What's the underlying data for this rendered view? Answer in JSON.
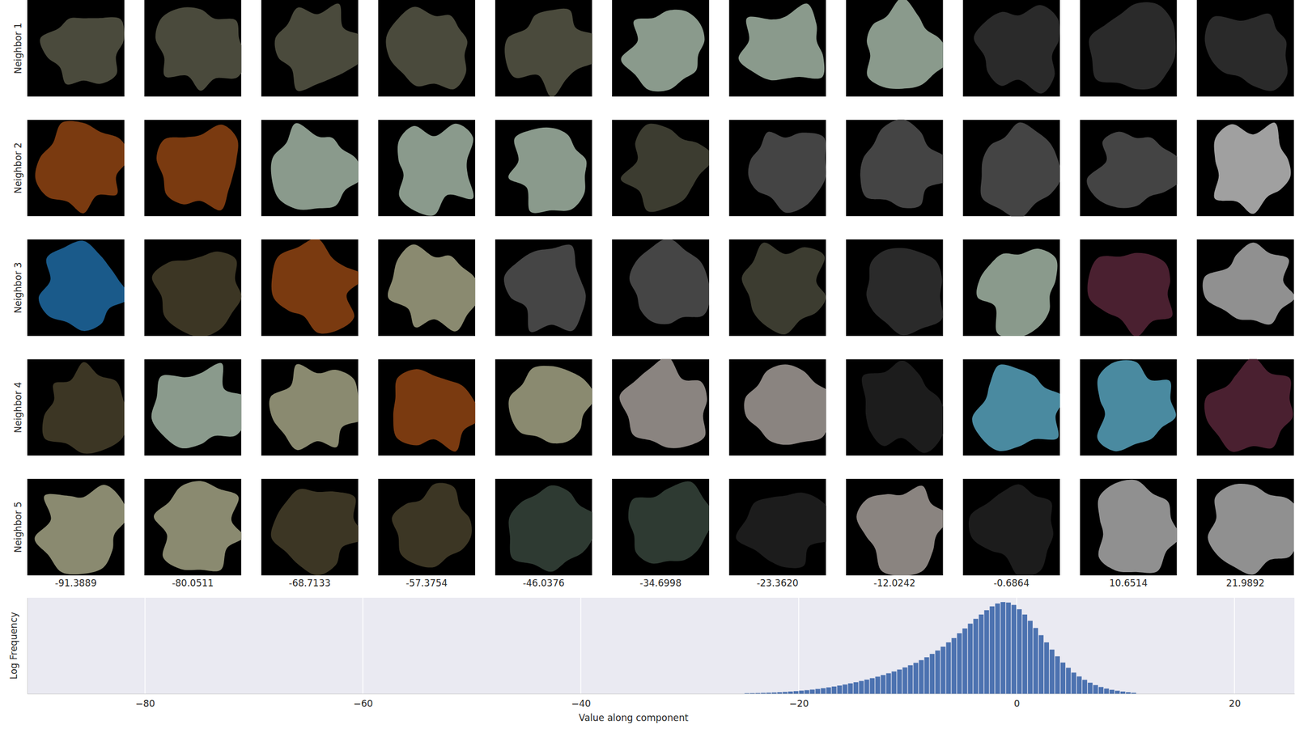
{
  "chart_data": {
    "type": "histogram",
    "row_labels": [
      "Neighbor 1",
      "Neighbor 2",
      "Neighbor 3",
      "Neighbor 4",
      "Neighbor 5"
    ],
    "column_values": [
      -91.3889,
      -80.0511,
      -68.7133,
      -57.3754,
      -46.0376,
      -34.6998,
      {
        "value": -23.362,
        "label": "-23.3620"
      },
      -12.0242,
      -0.6864,
      10.6514,
      21.9892
    ],
    "x_label": "Value along component",
    "y_label": "Log Frequency",
    "color": "#4c72b0",
    "grid": true,
    "tick_labels": "x",
    "xlim": [
      -90.8,
      25.5
    ],
    "xticks": [
      {
        "value": -80,
        "label": "−80"
      },
      {
        "value": -60,
        "label": "−60"
      },
      {
        "value": -40,
        "label": "−40"
      },
      {
        "value": -20,
        "label": "−20"
      },
      0,
      20
    ],
    "ylim": [
      0,
      10
    ],
    "bins": [
      -25,
      -24.5,
      -24,
      -23.5,
      -23,
      -22.5,
      -22,
      -21.5,
      -21,
      -20.5,
      -20,
      -19.5,
      -19,
      -18.5,
      -18,
      -17.5,
      -17,
      -16.5,
      -16,
      -15.5,
      -15,
      -14.5,
      -14,
      -13.5,
      -13,
      -12.5,
      -12,
      -11.5,
      -11,
      -10.5,
      -10,
      -9.5,
      -9,
      -8.5,
      -8,
      -7.5,
      -7,
      -6.5,
      -6,
      -5.5,
      -5,
      -4.5,
      -4,
      -3.5,
      -3,
      -2.5,
      -2,
      -1.5,
      -1,
      -0.5,
      0,
      0.5,
      1,
      1.5,
      2,
      2.5,
      3,
      3.5,
      4,
      4.5,
      5,
      5.5,
      6,
      6.5,
      7,
      7.5,
      8,
      8.5,
      9,
      9.5,
      10,
      10.5,
      11
    ],
    "values": [
      0.05,
      0.06,
      0.07,
      0.09,
      0.11,
      0.13,
      0.16,
      0.19,
      0.23,
      0.27,
      0.32,
      0.37,
      0.43,
      0.5,
      0.58,
      0.66,
      0.75,
      0.85,
      0.96,
      1.08,
      1.2,
      1.33,
      1.47,
      1.62,
      1.78,
      1.95,
      2.13,
      2.32,
      2.52,
      2.74,
      2.97,
      3.22,
      3.5,
      3.8,
      4.15,
      4.5,
      4.9,
      5.35,
      5.8,
      6.3,
      6.8,
      7.3,
      7.8,
      8.25,
      8.7,
      9.1,
      9.4,
      9.55,
      9.5,
      9.25,
      8.8,
      8.25,
      7.6,
      6.85,
      6.1,
      5.35,
      4.6,
      3.9,
      3.25,
      2.7,
      2.2,
      1.8,
      1.45,
      1.15,
      0.9,
      0.7,
      0.54,
      0.41,
      0.31,
      0.23,
      0.16,
      0.1
    ]
  }
}
